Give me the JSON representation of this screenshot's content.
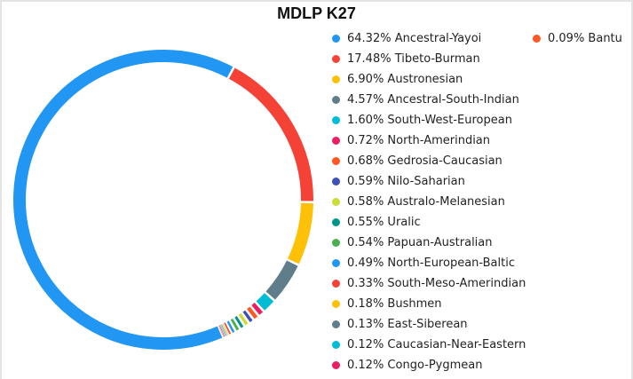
{
  "chart_data": {
    "type": "pie",
    "title": "MDLP K27",
    "slices": [
      {
        "label": "Ancestral-Yayoi",
        "value": 64.32,
        "display": "64.32% Ancestral-Yayoi",
        "color": "#2196f3"
      },
      {
        "label": "Tibeto-Burman",
        "value": 17.48,
        "display": "17.48% Tibeto-Burman",
        "color": "#f44336"
      },
      {
        "label": "Austronesian",
        "value": 6.9,
        "display": "6.90% Austronesian",
        "color": "#ffc107"
      },
      {
        "label": "Ancestral-South-Indian",
        "value": 4.57,
        "display": "4.57% Ancestral-South-Indian",
        "color": "#607d8b"
      },
      {
        "label": "South-West-European",
        "value": 1.6,
        "display": "1.60% South-West-European",
        "color": "#00bcd4"
      },
      {
        "label": "North-Amerindian",
        "value": 0.72,
        "display": "0.72% North-Amerindian",
        "color": "#e91e63"
      },
      {
        "label": "Gedrosia-Caucasian",
        "value": 0.68,
        "display": "0.68% Gedrosia-Caucasian",
        "color": "#ff5722"
      },
      {
        "label": "Nilo-Saharian",
        "value": 0.59,
        "display": "0.59% Nilo-Saharian",
        "color": "#3f51b5"
      },
      {
        "label": "Australo-Melanesian",
        "value": 0.58,
        "display": "0.58% Australo-Melanesian",
        "color": "#cddc39"
      },
      {
        "label": "Uralic",
        "value": 0.55,
        "display": "0.55% Uralic",
        "color": "#009688"
      },
      {
        "label": "Papuan-Australian",
        "value": 0.54,
        "display": "0.54% Papuan-Australian",
        "color": "#4caf50"
      },
      {
        "label": "North-European-Baltic",
        "value": 0.49,
        "display": "0.49% North-European-Baltic",
        "color": "#2196f3"
      },
      {
        "label": "South-Meso-Amerindian",
        "value": 0.33,
        "display": "0.33% South-Meso-Amerindian",
        "color": "#f44336"
      },
      {
        "label": "Bushmen",
        "value": 0.18,
        "display": "0.18% Bushmen",
        "color": "#ffc107"
      },
      {
        "label": "East-Siberean",
        "value": 0.13,
        "display": "0.13% East-Siberean",
        "color": "#607d8b"
      },
      {
        "label": "Caucasian-Near-Eastern",
        "value": 0.12,
        "display": "0.12% Caucasian-Near-Eastern",
        "color": "#00bcd4"
      },
      {
        "label": "Congo-Pygmean",
        "value": 0.12,
        "display": "0.12% Congo-Pygmean",
        "color": "#e91e63"
      },
      {
        "label": "Bantu",
        "value": 0.09,
        "display": "0.09% Bantu",
        "color": "#ff5722"
      }
    ],
    "legend_position": "right"
  }
}
